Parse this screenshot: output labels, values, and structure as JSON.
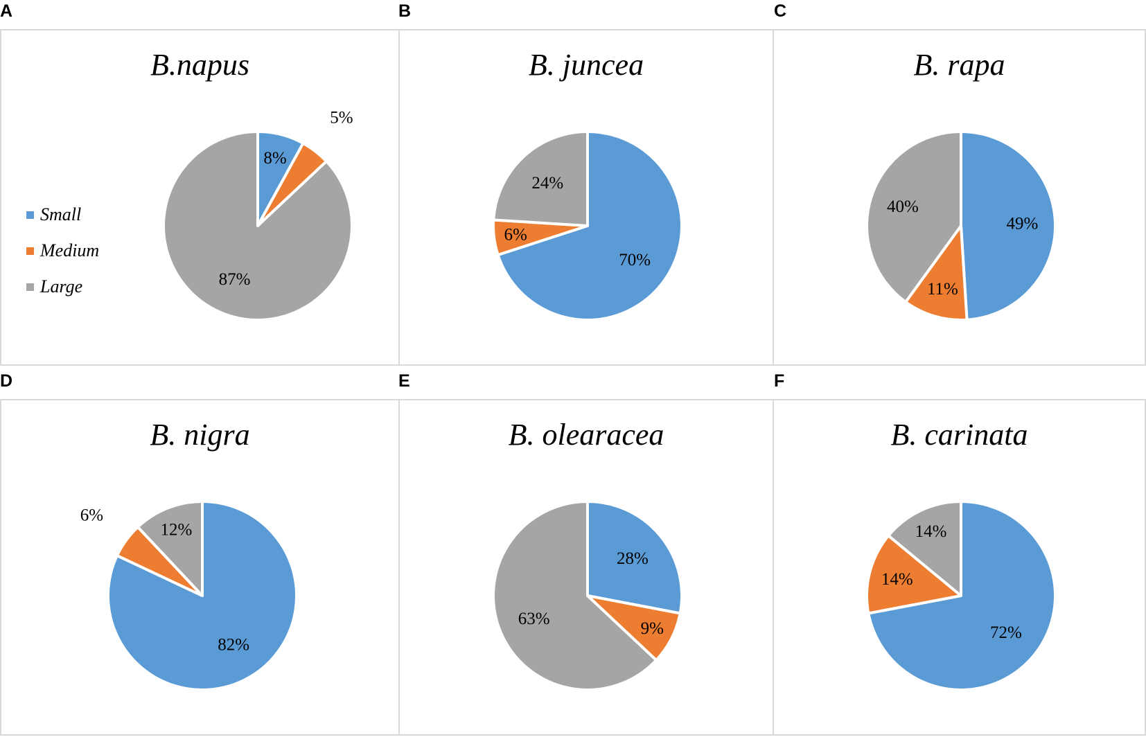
{
  "colors": {
    "Small": "#5b9bd5",
    "Medium": "#ed7d31",
    "Large": "#a5a5a5"
  },
  "legend": {
    "items": [
      "Small",
      "Medium",
      "Large"
    ]
  },
  "chart_data": [
    {
      "panel": "A",
      "type": "pie",
      "title": "B.napus",
      "slices": [
        {
          "name": "Small",
          "value": 8,
          "label": "8%"
        },
        {
          "name": "Medium",
          "value": 5,
          "label": "5%"
        },
        {
          "name": "Large",
          "value": 87,
          "label": "87%"
        }
      ]
    },
    {
      "panel": "B",
      "type": "pie",
      "title": "B. juncea",
      "slices": [
        {
          "name": "Small",
          "value": 70,
          "label": "70%"
        },
        {
          "name": "Medium",
          "value": 6,
          "label": "6%"
        },
        {
          "name": "Large",
          "value": 24,
          "label": "24%"
        }
      ]
    },
    {
      "panel": "C",
      "type": "pie",
      "title": "B. rapa",
      "slices": [
        {
          "name": "Small",
          "value": 49,
          "label": "49%"
        },
        {
          "name": "Medium",
          "value": 11,
          "label": "11%"
        },
        {
          "name": "Large",
          "value": 40,
          "label": "40%"
        }
      ]
    },
    {
      "panel": "D",
      "type": "pie",
      "title": "B. nigra",
      "slices": [
        {
          "name": "Small",
          "value": 82,
          "label": "82%"
        },
        {
          "name": "Medium",
          "value": 6,
          "label": "6%"
        },
        {
          "name": "Large",
          "value": 12,
          "label": "12%"
        }
      ]
    },
    {
      "panel": "E",
      "type": "pie",
      "title": "B. olearacea",
      "slices": [
        {
          "name": "Small",
          "value": 28,
          "label": "28%"
        },
        {
          "name": "Medium",
          "value": 9,
          "label": "9%"
        },
        {
          "name": "Large",
          "value": 63,
          "label": "63%"
        }
      ]
    },
    {
      "panel": "F",
      "type": "pie",
      "title": "B. carinata",
      "slices": [
        {
          "name": "Small",
          "value": 72,
          "label": "72%"
        },
        {
          "name": "Medium",
          "value": 14,
          "label": "14%"
        },
        {
          "name": "Large",
          "value": 14,
          "label": "14%"
        }
      ]
    }
  ]
}
